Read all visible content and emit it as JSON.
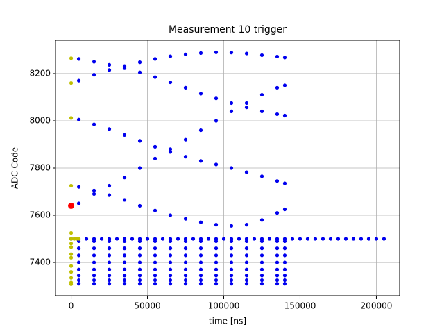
{
  "chart_data": {
    "type": "scatter",
    "title": "Measurement 10 trigger",
    "x_label": "time [ns]",
    "y_label": "ADC Code",
    "xlim": [
      -10250,
      215250
    ],
    "ylim": [
      7259,
      8341
    ],
    "xticks": [
      0,
      50000,
      100000,
      150000,
      200000
    ],
    "yticks": [
      7400,
      7600,
      7800,
      8000,
      8200
    ],
    "grid": true,
    "series": [
      {
        "color": "#0000ee",
        "x": [
          5000,
          15000,
          25000,
          35000,
          45000,
          55000,
          65000,
          75000,
          85000,
          95000,
          105000,
          115000,
          125000,
          135000,
          140000
        ],
        "y": [
          8170,
          8195,
          8215,
          8232,
          8248,
          8262,
          8273,
          8281,
          8287,
          8290,
          8289,
          8285,
          8278,
          8272,
          8268
        ]
      },
      {
        "color": "#0000ee",
        "x": [
          5000,
          15000,
          25000,
          35000,
          45000,
          55000,
          65000,
          75000,
          85000,
          95000,
          105000,
          115000,
          125000,
          135000,
          140000
        ],
        "y": [
          8262,
          8250,
          8237,
          8223,
          8205,
          8185,
          8163,
          8140,
          8115,
          8095,
          8075,
          8057,
          8040,
          8028,
          8022
        ]
      },
      {
        "color": "#0000ee",
        "x": [
          5000,
          15000,
          25000,
          35000,
          45000,
          55000,
          65000,
          75000,
          85000,
          95000,
          105000,
          115000,
          125000,
          135000,
          140000
        ],
        "y": [
          8005,
          7985,
          7965,
          7940,
          7915,
          7890,
          7868,
          7848,
          7830,
          7815,
          7800,
          7782,
          7765,
          7745,
          7735
        ]
      },
      {
        "color": "#0000ee",
        "x": [
          5000,
          15000,
          25000,
          35000,
          45000,
          55000,
          65000,
          75000,
          85000,
          95000,
          105000,
          115000,
          125000,
          135000,
          140000
        ],
        "y": [
          7650,
          7690,
          7725,
          7760,
          7800,
          7840,
          7880,
          7920,
          7960,
          8000,
          8040,
          8075,
          8110,
          8140,
          8150
        ]
      },
      {
        "color": "#0000ee",
        "x": [
          5000,
          15000,
          25000,
          35000,
          45000,
          55000,
          65000,
          75000,
          85000,
          95000,
          105000,
          115000,
          125000,
          135000,
          140000
        ],
        "y": [
          7720,
          7705,
          7685,
          7665,
          7640,
          7620,
          7600,
          7585,
          7570,
          7560,
          7555,
          7560,
          7580,
          7610,
          7625
        ]
      },
      {
        "color": "#0000ee",
        "x": [
          5000,
          15000,
          25000,
          35000,
          45000,
          55000,
          65000,
          75000,
          85000,
          95000,
          105000,
          115000,
          125000,
          135000,
          140000
        ],
        "y": [
          7490,
          7490,
          7490,
          7490,
          7490,
          7490,
          7490,
          7490,
          7490,
          7490,
          7490,
          7490,
          7490,
          7490,
          7490
        ]
      },
      {
        "color": "#0000ee",
        "x": [
          5000,
          15000,
          25000,
          35000,
          45000,
          55000,
          65000,
          75000,
          85000,
          95000,
          105000,
          115000,
          125000,
          135000,
          140000
        ],
        "y": [
          7460,
          7460,
          7460,
          7460,
          7460,
          7460,
          7460,
          7460,
          7460,
          7460,
          7460,
          7460,
          7460,
          7460,
          7460
        ]
      },
      {
        "color": "#0000ee",
        "x": [
          5000,
          15000,
          25000,
          35000,
          45000,
          55000,
          65000,
          75000,
          85000,
          95000,
          105000,
          115000,
          125000,
          135000,
          140000
        ],
        "y": [
          7430,
          7430,
          7430,
          7430,
          7430,
          7430,
          7430,
          7430,
          7430,
          7430,
          7430,
          7430,
          7430,
          7430,
          7430
        ]
      },
      {
        "color": "#0000ee",
        "x": [
          5000,
          15000,
          25000,
          35000,
          45000,
          55000,
          65000,
          75000,
          85000,
          95000,
          105000,
          115000,
          125000,
          135000,
          140000
        ],
        "y": [
          7400,
          7400,
          7400,
          7400,
          7400,
          7400,
          7400,
          7400,
          7400,
          7400,
          7400,
          7400,
          7400,
          7400,
          7400
        ]
      },
      {
        "color": "#0000ee",
        "x": [
          5000,
          15000,
          25000,
          35000,
          45000,
          55000,
          65000,
          75000,
          85000,
          95000,
          105000,
          115000,
          125000,
          135000,
          140000
        ],
        "y": [
          7370,
          7370,
          7370,
          7370,
          7370,
          7370,
          7370,
          7370,
          7370,
          7370,
          7370,
          7370,
          7370,
          7370,
          7370
        ]
      },
      {
        "color": "#0000ee",
        "x": [
          5000,
          15000,
          25000,
          35000,
          45000,
          55000,
          65000,
          75000,
          85000,
          95000,
          105000,
          115000,
          125000,
          135000,
          140000
        ],
        "y": [
          7345,
          7345,
          7345,
          7345,
          7345,
          7345,
          7345,
          7345,
          7345,
          7345,
          7345,
          7345,
          7345,
          7345,
          7345
        ]
      },
      {
        "color": "#0000ee",
        "x": [
          5000,
          15000,
          25000,
          35000,
          45000,
          55000,
          65000,
          75000,
          85000,
          95000,
          105000,
          115000,
          125000,
          135000,
          140000
        ],
        "y": [
          7325,
          7325,
          7325,
          7325,
          7325,
          7325,
          7325,
          7325,
          7325,
          7325,
          7325,
          7325,
          7325,
          7325,
          7325
        ]
      },
      {
        "color": "#0000ee",
        "x": [
          5000,
          15000,
          25000,
          35000,
          45000,
          55000,
          65000,
          75000,
          85000,
          95000,
          105000,
          115000,
          125000,
          135000,
          140000
        ],
        "y": [
          7310,
          7310,
          7310,
          7310,
          7310,
          7310,
          7310,
          7310,
          7310,
          7310,
          7310,
          7310,
          7310,
          7310,
          7310
        ]
      },
      {
        "color": "#0000ee",
        "x": [
          0,
          5000,
          10000,
          15000,
          20000,
          25000,
          30000,
          35000,
          40000,
          45000,
          50000,
          55000,
          60000,
          65000,
          70000,
          75000,
          80000,
          85000,
          90000,
          95000,
          100000,
          105000,
          110000,
          115000,
          120000,
          125000,
          130000,
          135000,
          140000,
          145000,
          150000,
          155000,
          160000,
          165000,
          170000,
          175000,
          180000,
          185000,
          190000,
          195000,
          200000,
          205000
        ],
        "y": [
          7500,
          7500,
          7500,
          7500,
          7500,
          7500,
          7500,
          7500,
          7500,
          7500,
          7500,
          7500,
          7500,
          7500,
          7500,
          7500,
          7500,
          7500,
          7500,
          7500,
          7500,
          7500,
          7500,
          7500,
          7500,
          7500,
          7500,
          7500,
          7500,
          7500,
          7500,
          7500,
          7500,
          7500,
          7500,
          7500,
          7500,
          7500,
          7500,
          7500,
          7500,
          7500
        ]
      },
      {
        "color": "#000000",
        "x": [
          0
        ],
        "y": [
          7500
        ]
      },
      {
        "color": "#bfbf00",
        "x": [
          0,
          0,
          0,
          0,
          0,
          0,
          0,
          0,
          0,
          0,
          0,
          0,
          0,
          0,
          0,
          2000,
          3500,
          5000
        ],
        "y": [
          8265,
          8160,
          8012,
          7725,
          7525,
          7500,
          7480,
          7465,
          7435,
          7420,
          7385,
          7360,
          7335,
          7315,
          7308,
          7500,
          7500,
          7500
        ]
      },
      {
        "color": "#ff0000",
        "x": [
          0
        ],
        "y": [
          7640
        ],
        "size": 4.5
      }
    ]
  }
}
